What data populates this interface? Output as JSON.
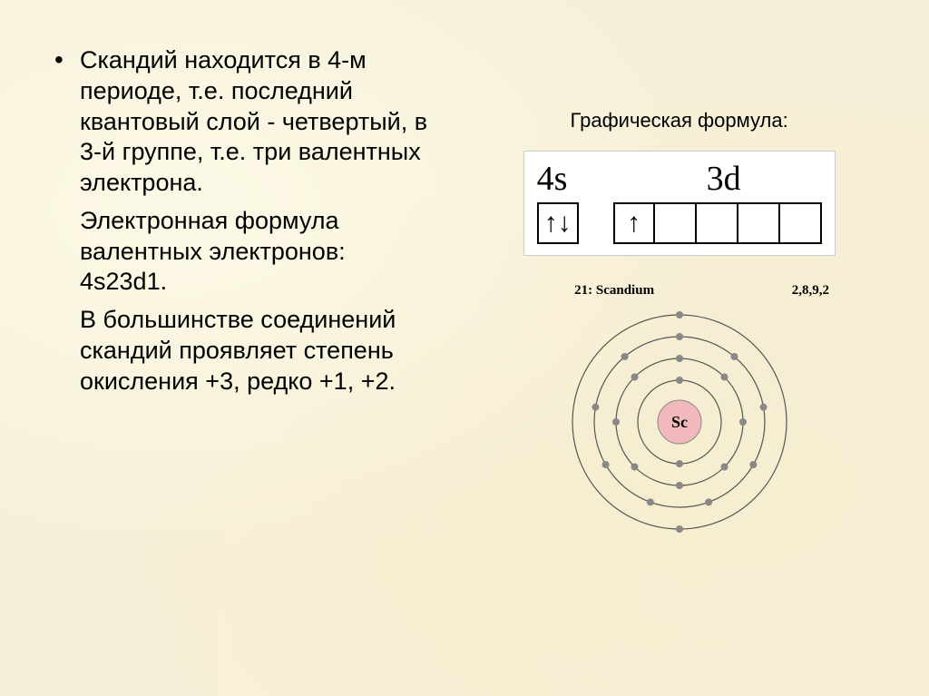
{
  "text": {
    "bullet1": "Скандий находится в 4-м периоде, т.е. последний квантовый слой - четвертый, в 3-й группе, т.е. три валентных электрона.",
    "para2": "Электронная формула валентных электронов: 4s23d1.",
    "para3": "В большинстве соединений скандий проявляет степень окисления +3, редко +1, +2.",
    "rightLabel": "Графическая формула:",
    "orb4s": "4s",
    "orb3d": "3d",
    "atomLeft": "21: Scandium",
    "atomRight": "2,8,9,2",
    "atomSymbol": "Sc"
  },
  "style": {
    "bodyFontSize": 27,
    "lineHeight": 1.25,
    "rightLabelFontSize": 22,
    "atomCaptionFontSize": 15,
    "background": "#f7f0d8",
    "boxBorder": "#000000",
    "orbitalBg": "#ffffff",
    "nucleusFill": "#f2b9bd",
    "nucleusStroke": "#888888",
    "shellStroke": "#555555",
    "electronFill": "#888888"
  },
  "orbitalDiagram": {
    "subshells": [
      {
        "label": "4s",
        "boxes": 1,
        "arrows": [
          "↑↓"
        ]
      },
      {
        "label": "3d",
        "boxes": 5,
        "arrows": [
          "↑",
          "",
          "",
          "",
          ""
        ]
      }
    ],
    "gapBetweenGroups": 38,
    "boxSize": 46
  },
  "atom": {
    "symbol": "Sc",
    "atomicNumber": 21,
    "shells": [
      2,
      8,
      9,
      2
    ],
    "shellRadii": [
      46,
      70,
      94,
      118
    ],
    "nucleusRadius": 24,
    "svgSize": 260,
    "electronRadius": 4
  }
}
